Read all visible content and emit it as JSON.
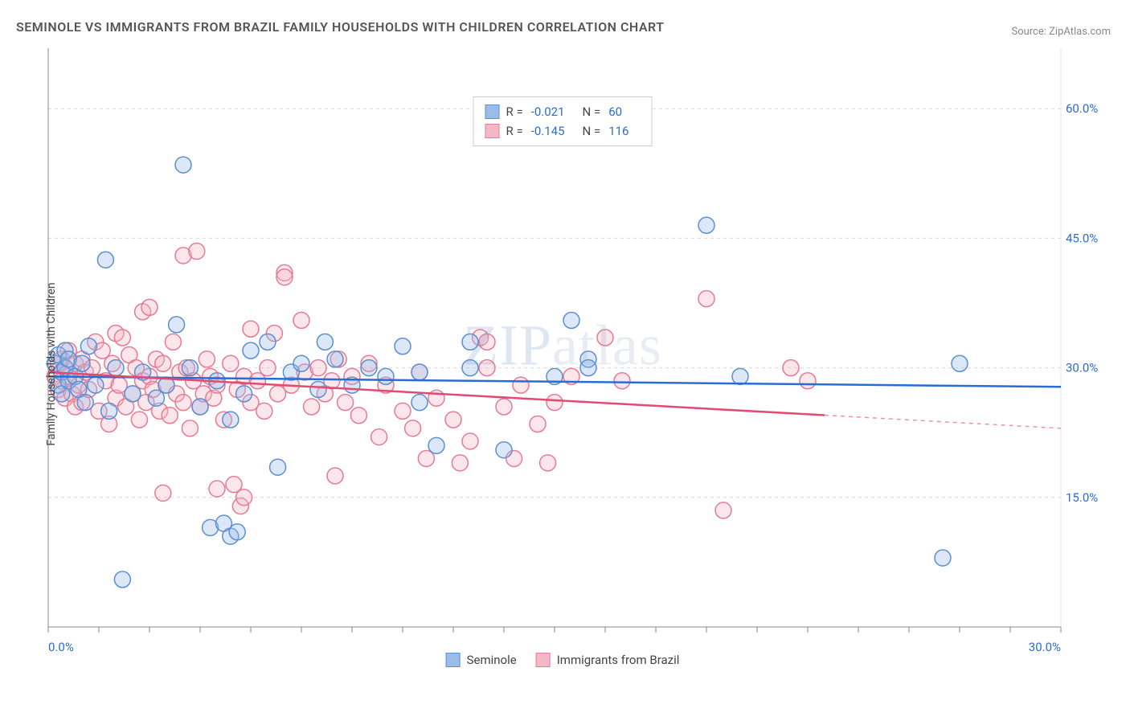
{
  "title": "SEMINOLE VS IMMIGRANTS FROM BRAZIL FAMILY HOUSEHOLDS WITH CHILDREN CORRELATION CHART",
  "source": "Source: ZipAtlas.com",
  "y_axis_label": "Family Households with Children",
  "watermark": "ZIPatlas",
  "chart": {
    "type": "scatter",
    "xlim": [
      0,
      30
    ],
    "ylim": [
      0,
      67
    ],
    "x_ticks": [
      0.0,
      30.0
    ],
    "x_tick_labels": [
      "0.0%",
      "30.0%"
    ],
    "y_ticks": [
      15.0,
      30.0,
      45.0,
      60.0
    ],
    "y_tick_labels": [
      "15.0%",
      "30.0%",
      "45.0%",
      "60.0%"
    ],
    "grid_color": "#d9d9d9",
    "axis_color": "#888888",
    "background_color": "#ffffff",
    "tick_minor_x": [
      0,
      1.5,
      3,
      4.5,
      6,
      7.5,
      9,
      10.5,
      12,
      13.5,
      15,
      16.5,
      18,
      19.5,
      21,
      22.5,
      24,
      25.5,
      27,
      28.5,
      30
    ],
    "marker_radius": 10,
    "marker_stroke_width": 1.5,
    "marker_fill_opacity": 0.35,
    "series": [
      {
        "name": "Seminole",
        "color_fill": "#9bbce8",
        "color_stroke": "#5a8fd4",
        "line_color": "#2a6cd6",
        "line_width": 2.5,
        "R": "-0.021",
        "N": "60",
        "regression": {
          "x1": 0,
          "y1": 29.0,
          "x2": 30,
          "y2": 27.8,
          "solid_until": 30
        },
        "points": [
          [
            0.2,
            30.5
          ],
          [
            0.3,
            28.0
          ],
          [
            0.3,
            31.5
          ],
          [
            0.4,
            27.0
          ],
          [
            0.4,
            29.5
          ],
          [
            0.5,
            30.0
          ],
          [
            0.5,
            32.0
          ],
          [
            0.6,
            28.5
          ],
          [
            0.6,
            31.0
          ],
          [
            0.8,
            29.0
          ],
          [
            0.9,
            27.5
          ],
          [
            1.0,
            30.5
          ],
          [
            1.1,
            26.0
          ],
          [
            1.2,
            32.5
          ],
          [
            1.4,
            28.0
          ],
          [
            1.7,
            42.5
          ],
          [
            1.8,
            25.0
          ],
          [
            2.0,
            30.0
          ],
          [
            2.2,
            5.5
          ],
          [
            2.5,
            27.0
          ],
          [
            2.8,
            29.5
          ],
          [
            3.2,
            26.5
          ],
          [
            3.5,
            28.0
          ],
          [
            3.8,
            35.0
          ],
          [
            4.0,
            53.5
          ],
          [
            4.2,
            30.0
          ],
          [
            4.5,
            25.5
          ],
          [
            4.8,
            11.5
          ],
          [
            5.0,
            28.5
          ],
          [
            5.2,
            12.0
          ],
          [
            5.4,
            10.5
          ],
          [
            5.4,
            24.0
          ],
          [
            5.6,
            11.0
          ],
          [
            5.8,
            27.0
          ],
          [
            6.0,
            32.0
          ],
          [
            6.5,
            33.0
          ],
          [
            6.8,
            18.5
          ],
          [
            7.2,
            29.5
          ],
          [
            7.5,
            30.5
          ],
          [
            8.0,
            27.5
          ],
          [
            8.2,
            33.0
          ],
          [
            8.5,
            31.0
          ],
          [
            9.0,
            28.0
          ],
          [
            9.5,
            30.0
          ],
          [
            10.0,
            29.0
          ],
          [
            10.5,
            32.5
          ],
          [
            11.0,
            29.5
          ],
          [
            11.0,
            26.0
          ],
          [
            11.5,
            21.0
          ],
          [
            12.5,
            33.0
          ],
          [
            12.5,
            30.0
          ],
          [
            13.5,
            20.5
          ],
          [
            15.0,
            29.0
          ],
          [
            15.5,
            35.5
          ],
          [
            16.0,
            31.0
          ],
          [
            16.0,
            30.0
          ],
          [
            19.5,
            46.5
          ],
          [
            20.5,
            29.0
          ],
          [
            26.5,
            8.0
          ],
          [
            27.0,
            30.5
          ]
        ]
      },
      {
        "name": "Immigrants from Brazil",
        "color_fill": "#f2b8c6",
        "color_stroke": "#e77a94",
        "line_color": "#e24a72",
        "line_width": 2.5,
        "R": "-0.145",
        "N": "116",
        "regression": {
          "x1": 0,
          "y1": 29.5,
          "x2": 30,
          "y2": 23.0,
          "solid_until": 23
        },
        "points": [
          [
            0.2,
            29.0
          ],
          [
            0.3,
            30.5
          ],
          [
            0.3,
            27.5
          ],
          [
            0.4,
            31.0
          ],
          [
            0.4,
            28.5
          ],
          [
            0.5,
            30.0
          ],
          [
            0.5,
            26.5
          ],
          [
            0.6,
            32.0
          ],
          [
            0.6,
            29.0
          ],
          [
            0.7,
            27.0
          ],
          [
            0.8,
            30.5
          ],
          [
            0.8,
            25.5
          ],
          [
            0.9,
            28.0
          ],
          [
            1.0,
            31.0
          ],
          [
            1.0,
            26.0
          ],
          [
            1.1,
            29.5
          ],
          [
            1.2,
            27.5
          ],
          [
            1.3,
            30.0
          ],
          [
            1.4,
            33.0
          ],
          [
            1.5,
            25.0
          ],
          [
            1.6,
            32.0
          ],
          [
            1.7,
            28.5
          ],
          [
            1.8,
            23.5
          ],
          [
            1.9,
            30.5
          ],
          [
            2.0,
            26.5
          ],
          [
            2.0,
            34.0
          ],
          [
            2.1,
            28.0
          ],
          [
            2.2,
            33.5
          ],
          [
            2.3,
            25.5
          ],
          [
            2.4,
            31.5
          ],
          [
            2.5,
            27.0
          ],
          [
            2.6,
            30.0
          ],
          [
            2.7,
            24.0
          ],
          [
            2.8,
            28.5
          ],
          [
            2.8,
            36.5
          ],
          [
            2.9,
            26.0
          ],
          [
            3.0,
            29.0
          ],
          [
            3.0,
            37.0
          ],
          [
            3.1,
            27.5
          ],
          [
            3.2,
            31.0
          ],
          [
            3.3,
            25.0
          ],
          [
            3.4,
            30.5
          ],
          [
            3.4,
            15.5
          ],
          [
            3.5,
            28.0
          ],
          [
            3.6,
            24.5
          ],
          [
            3.7,
            33.0
          ],
          [
            3.8,
            27.0
          ],
          [
            3.9,
            29.5
          ],
          [
            4.0,
            26.0
          ],
          [
            4.0,
            43.0
          ],
          [
            4.1,
            30.0
          ],
          [
            4.2,
            23.0
          ],
          [
            4.3,
            28.5
          ],
          [
            4.4,
            43.5
          ],
          [
            4.5,
            25.5
          ],
          [
            4.6,
            27.0
          ],
          [
            4.7,
            31.0
          ],
          [
            4.8,
            29.0
          ],
          [
            4.9,
            26.5
          ],
          [
            5.0,
            28.0
          ],
          [
            5.0,
            16.0
          ],
          [
            5.2,
            24.0
          ],
          [
            5.4,
            30.5
          ],
          [
            5.5,
            16.5
          ],
          [
            5.6,
            27.5
          ],
          [
            5.7,
            14.0
          ],
          [
            5.8,
            15.0
          ],
          [
            5.8,
            29.0
          ],
          [
            6.0,
            26.0
          ],
          [
            6.0,
            34.5
          ],
          [
            6.2,
            28.5
          ],
          [
            6.4,
            25.0
          ],
          [
            6.5,
            30.0
          ],
          [
            6.7,
            34.0
          ],
          [
            6.8,
            27.0
          ],
          [
            7.0,
            41.0
          ],
          [
            7.0,
            40.5
          ],
          [
            7.2,
            28.0
          ],
          [
            7.5,
            35.5
          ],
          [
            7.6,
            29.5
          ],
          [
            7.8,
            25.5
          ],
          [
            8.0,
            30.0
          ],
          [
            8.2,
            27.0
          ],
          [
            8.4,
            28.5
          ],
          [
            8.5,
            17.5
          ],
          [
            8.6,
            31.0
          ],
          [
            8.8,
            26.0
          ],
          [
            9.0,
            29.0
          ],
          [
            9.2,
            24.5
          ],
          [
            9.5,
            30.5
          ],
          [
            9.8,
            22.0
          ],
          [
            10.0,
            28.0
          ],
          [
            10.5,
            25.0
          ],
          [
            10.8,
            23.0
          ],
          [
            11.0,
            29.5
          ],
          [
            11.2,
            19.5
          ],
          [
            11.5,
            26.5
          ],
          [
            12.0,
            24.0
          ],
          [
            12.2,
            19.0
          ],
          [
            12.5,
            21.5
          ],
          [
            12.8,
            33.5
          ],
          [
            13.0,
            33.0
          ],
          [
            13.0,
            30.0
          ],
          [
            13.5,
            25.5
          ],
          [
            13.8,
            19.5
          ],
          [
            14.0,
            28.0
          ],
          [
            14.5,
            23.5
          ],
          [
            14.8,
            19.0
          ],
          [
            15.0,
            26.0
          ],
          [
            15.5,
            29.0
          ],
          [
            16.5,
            33.5
          ],
          [
            17.0,
            28.5
          ],
          [
            19.5,
            38.0
          ],
          [
            20.0,
            13.5
          ],
          [
            22.0,
            30.0
          ],
          [
            22.5,
            28.5
          ]
        ]
      }
    ]
  },
  "legend_bottom": [
    {
      "label": "Seminole",
      "fill": "#9bbce8",
      "stroke": "#5a8fd4"
    },
    {
      "label": "Immigrants from Brazil",
      "fill": "#f2b8c6",
      "stroke": "#e77a94"
    }
  ]
}
